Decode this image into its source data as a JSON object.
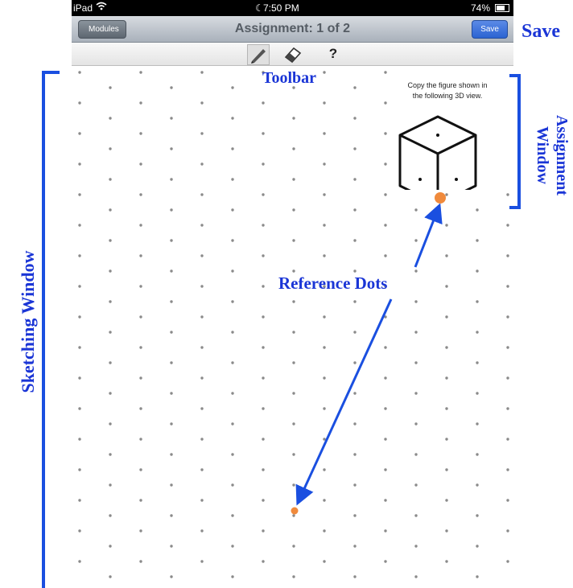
{
  "status_bar": {
    "device": "iPad",
    "time": "7:50 PM",
    "battery": "74%"
  },
  "nav": {
    "back_label": "Modules",
    "title": "Assignment: 1 of 2",
    "save_label": "Save"
  },
  "toolbar": {
    "tools": [
      "pencil-icon",
      "eraser-icon",
      "help-icon"
    ],
    "help_glyph": "?"
  },
  "assignment": {
    "prompt_line1": "Copy the figure shown in",
    "prompt_line2": "the following 3D view."
  },
  "annotations": {
    "save": "Save",
    "toolbar": "Toolbar",
    "assignment_window_line1": "Assignment",
    "assignment_window_line2": "Window",
    "sketching_window": "Sketching Window",
    "reference_dots": "Reference Dots"
  },
  "colors": {
    "annotation": "#1a35d6",
    "reference_dot": "#f08a3c",
    "grid_dot": "#8a8a8a",
    "save_button": "#2f6ad8"
  }
}
